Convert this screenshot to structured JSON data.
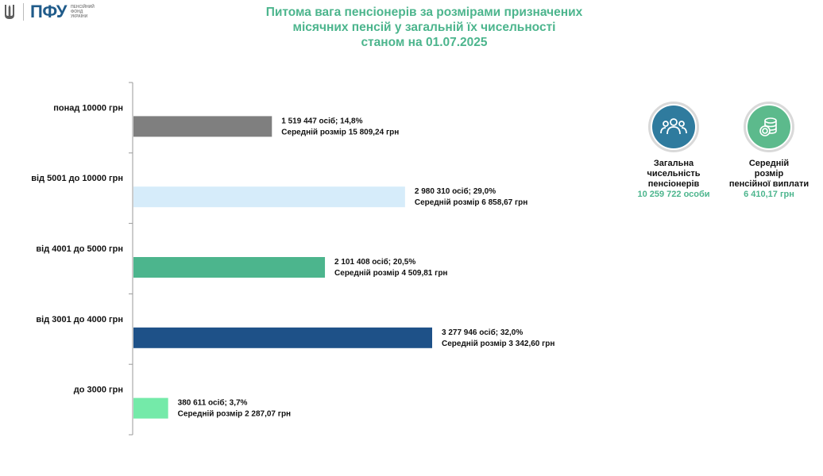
{
  "logo": {
    "abbr": "ПФУ",
    "sub": [
      "ПЕНСІЙНИЙ",
      "ФОНД",
      "УКРАЇНИ"
    ]
  },
  "title_lines": [
    "Питома вага пенсіонерів за розмірами призначених",
    "місячних пенсій у загальній їх чисельності",
    "станом на 01.07.2025"
  ],
  "stats": {
    "people": {
      "icon": "people-group-icon",
      "label": [
        "Загальна",
        "чисельність",
        "пенсіонерів"
      ],
      "value": "10 259 722 особи"
    },
    "payment": {
      "icon": "coins-icon",
      "label": [
        "Середній",
        "розмір",
        "пенсійної виплати"
      ],
      "value": "6 410,17 грн"
    }
  },
  "chart_data": {
    "type": "bar",
    "orientation": "horizontal",
    "categories": [
      "понад 10000 грн",
      "від 5001 до 10000 грн",
      "від 4001 до 5000 грн",
      "від 3001 до 4000 грн",
      "до 3000 грн"
    ],
    "values": [
      1519447,
      2980310,
      2101408,
      3277946,
      380611
    ],
    "percent": [
      14.8,
      29.0,
      20.5,
      32.0,
      3.7
    ],
    "colors": [
      "#7f7f7f",
      "#d6ecfa",
      "#4cb58d",
      "#1e5188",
      "#74eaa9"
    ],
    "labels_line1": [
      "1 519 447 осіб;  14,8%",
      "2 980 310 осіб; 29,0%",
      "2 101 408 осіб; 20,5%",
      "3 277 946 осіб; 32,0%",
      "380 611 осіб; 3,7%"
    ],
    "labels_line2": [
      "Середній розмір 15 809,24 грн",
      "Середній розмір 6 858,67 грн",
      "Середній розмір 4 509,81 грн",
      "Середній розмір 3 342,60 грн",
      "Середній розмір 2 287,07 грн"
    ],
    "grid": false
  }
}
